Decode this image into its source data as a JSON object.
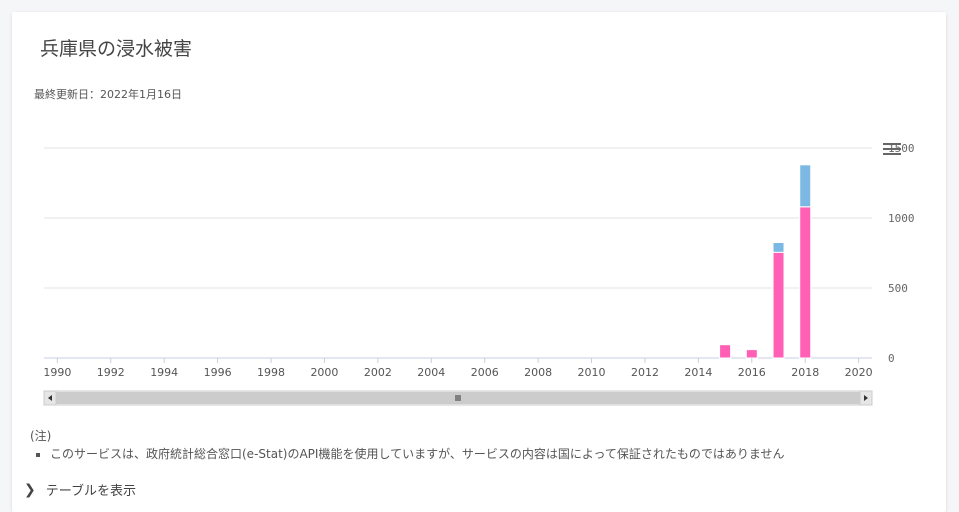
{
  "header": {
    "title": "兵庫県の浸水被害",
    "updated": "最終更新日：2022年1月16日"
  },
  "notes": {
    "heading": "(注)",
    "items": [
      "このサービスは、政府統計総合窓口(e-Stat)のAPI機能を使用していますが、サービスの内容は国によって保証されたものではありません"
    ]
  },
  "toggle": {
    "label": "テーブルを表示"
  },
  "colors": {
    "pink": "#ff5fb4",
    "blue": "#7cb8e4",
    "grid": "#e3e3e3",
    "scroll": "#cccccc"
  },
  "chart_data": {
    "type": "bar",
    "stacked": true,
    "x": [
      2015,
      2016,
      2017,
      2018
    ],
    "series": [
      {
        "color": "#ff5fb4",
        "values": [
          95,
          60,
          755,
          1080
        ]
      },
      {
        "color": "#7cb8e4",
        "values": [
          0,
          0,
          70,
          300
        ]
      }
    ],
    "xlim": [
      1989.5,
      2020.5
    ],
    "xticks": [
      "1990",
      "1992",
      "1994",
      "1996",
      "1998",
      "2000",
      "2002",
      "2004",
      "2006",
      "2008",
      "2010",
      "2012",
      "2014",
      "2016",
      "2018",
      "2020"
    ],
    "ylim": [
      0,
      1500
    ],
    "yticks": [
      "0",
      "500",
      "1000",
      "1500"
    ],
    "yaxis_side": "right",
    "grid": true,
    "navigator": true
  }
}
